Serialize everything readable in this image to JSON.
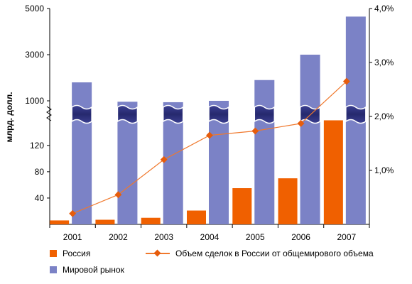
{
  "chart_data": {
    "type": "bar",
    "title": "",
    "ylabel": "млрд. долл.",
    "y_ticks_left": [
      "5000",
      "3000",
      "1000",
      "120",
      "80",
      "40"
    ],
    "y_ticks_right": [
      "4,0%",
      "3,0%",
      "2,0%",
      "1,0%"
    ],
    "axis_break": true,
    "categories": [
      "2001",
      "2002",
      "2003",
      "2004",
      "2005",
      "2006",
      "2007"
    ],
    "series": [
      {
        "name": "Россия",
        "type": "bar",
        "axis": "left",
        "color": "#f06000",
        "values": [
          6,
          7,
          10,
          21,
          55,
          70,
          155
        ]
      },
      {
        "name": "Мировой рынок",
        "type": "bar",
        "axis": "left",
        "color": "#7b82c6",
        "values": [
          1800,
          960,
          940,
          1000,
          1900,
          3000,
          4650
        ]
      },
      {
        "name": "Объем сделок в России от общемирового объема",
        "type": "line",
        "axis": "right",
        "color": "#e65c0c",
        "values": [
          0.2,
          0.55,
          1.2,
          1.65,
          1.73,
          1.87,
          2.65
        ]
      }
    ],
    "y2lim": [
      0,
      4.0
    ],
    "grid": false,
    "legend_position": "bottom"
  }
}
